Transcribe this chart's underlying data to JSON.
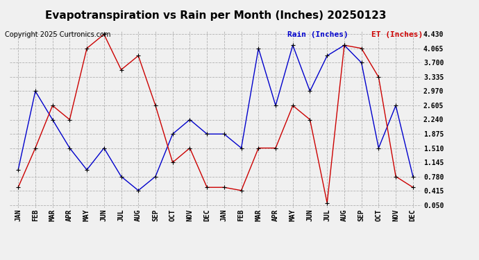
{
  "title": "Evapotranspiration vs Rain per Month (Inches) 20250123",
  "copyright": "Copyright 2025 Curtronics.com",
  "legend_rain": "Rain (Inches)",
  "legend_et": "ET (Inches)",
  "months": [
    "JAN",
    "FEB",
    "MAR",
    "APR",
    "MAY",
    "JUN",
    "JUL",
    "AUG",
    "SEP",
    "OCT",
    "NOV",
    "DEC",
    "JAN",
    "FEB",
    "MAR",
    "APR",
    "MAY",
    "JUN",
    "JUL",
    "AUG",
    "SEP",
    "OCT",
    "NOV",
    "DEC"
  ],
  "rain": [
    0.95,
    2.97,
    2.24,
    1.51,
    0.95,
    1.51,
    0.78,
    0.42,
    0.78,
    1.87,
    2.24,
    1.87,
    1.87,
    1.51,
    4.07,
    2.6,
    4.15,
    2.97,
    3.88,
    4.15,
    3.7,
    1.51,
    2.6,
    0.78
  ],
  "et": [
    0.5,
    1.51,
    2.6,
    2.24,
    4.07,
    4.43,
    3.52,
    3.88,
    2.6,
    1.14,
    1.51,
    0.5,
    0.5,
    0.42,
    1.51,
    1.51,
    2.6,
    2.24,
    0.1,
    4.15,
    4.07,
    3.33,
    0.78,
    0.5
  ],
  "rain_color": "#0000cc",
  "et_color": "#cc0000",
  "yticks": [
    0.05,
    0.415,
    0.78,
    1.145,
    1.51,
    1.875,
    2.24,
    2.605,
    2.97,
    3.335,
    3.7,
    4.065,
    4.43
  ],
  "background_color": "#f0f0f0",
  "title_fontsize": 11,
  "copyright_fontsize": 7,
  "legend_fontsize": 8,
  "tick_fontsize": 7
}
